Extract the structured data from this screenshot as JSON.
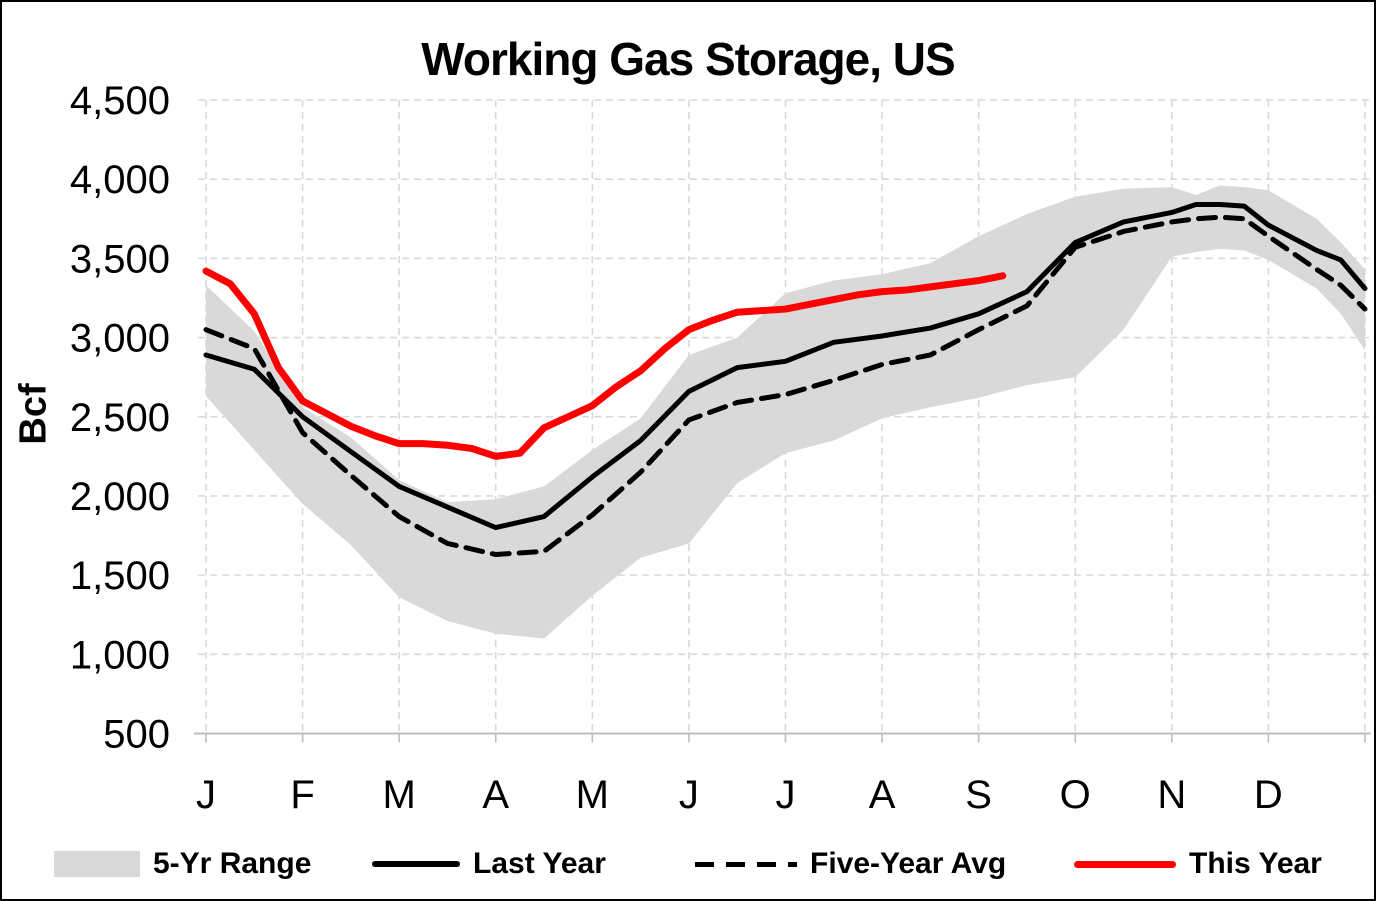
{
  "chart_data": {
    "type": "line",
    "title": "Working Gas Storage, US",
    "legend_position": "bottom",
    "y_axis": {
      "label": "Bcf",
      "range": [
        500,
        4500
      ],
      "tick_interval": 500,
      "ticks": [
        500,
        1000,
        1500,
        2000,
        2500,
        3000,
        3500,
        4000,
        4500
      ],
      "tick_labels": [
        "500",
        "1,000",
        "1,500",
        "2,000",
        "2,500",
        "3,000",
        "3,500",
        "4,000",
        "4,500"
      ],
      "gridlines": "dashed"
    },
    "x_axis": {
      "unit": "month_index_0_is_january",
      "range": [
        0,
        12
      ],
      "ticks": [
        0,
        1,
        2,
        3,
        4,
        5,
        6,
        7,
        8,
        9,
        10,
        11
      ],
      "tick_labels": [
        "J",
        "F",
        "M",
        "A",
        "M",
        "J",
        "J",
        "A",
        "S",
        "O",
        "N",
        "D"
      ],
      "gridlines": "dashed"
    },
    "colors": {
      "band": "#D9D9D9",
      "last_year": "#000000",
      "five_year_avg": "#000000",
      "this_year": "#FF0000",
      "gridline": "#D9D9D9",
      "axis_line": "#BFBFBF",
      "text": "#000000",
      "background": "#FFFFFF"
    },
    "series": {
      "five_year_range": {
        "label": "5-Yr Range",
        "type": "band",
        "color": "#D9D9D9",
        "x": [
          0,
          0.5,
          1,
          1.5,
          2,
          2.5,
          3,
          3.5,
          4,
          4.5,
          5,
          5.5,
          6,
          6.5,
          7,
          7.5,
          8,
          8.5,
          9,
          9.5,
          10,
          10.25,
          10.5,
          10.75,
          11,
          11.5,
          11.75,
          12
        ],
        "upper": [
          3330,
          3040,
          2560,
          2370,
          2100,
          1960,
          1980,
          2060,
          2290,
          2490,
          2890,
          3000,
          3280,
          3360,
          3400,
          3470,
          3640,
          3780,
          3890,
          3940,
          3950,
          3900,
          3960,
          3950,
          3930,
          3750,
          3600,
          3430
        ],
        "lower": [
          2630,
          2290,
          1950,
          1690,
          1360,
          1210,
          1130,
          1100,
          1370,
          1610,
          1700,
          2080,
          2270,
          2350,
          2490,
          2560,
          2620,
          2700,
          2750,
          3050,
          3510,
          3540,
          3560,
          3550,
          3490,
          3310,
          3150,
          2920
        ]
      },
      "last_year": {
        "label": "Last Year",
        "type": "line",
        "style": "solid",
        "color": "#000000",
        "stroke_width": 5,
        "x": [
          0,
          0.5,
          1,
          1.5,
          2,
          2.5,
          3,
          3.5,
          4,
          4.5,
          5,
          5.5,
          6,
          6.5,
          7,
          7.5,
          8,
          8.5,
          9,
          9.5,
          10,
          10.25,
          10.5,
          10.75,
          11,
          11.5,
          11.75,
          12
        ],
        "values": [
          2890,
          2800,
          2500,
          2280,
          2060,
          1930,
          1800,
          1870,
          2120,
          2350,
          2660,
          2810,
          2850,
          2970,
          3010,
          3060,
          3150,
          3290,
          3600,
          3730,
          3790,
          3840,
          3840,
          3830,
          3710,
          3550,
          3490,
          3310
        ]
      },
      "five_year_avg": {
        "label": "Five-Year Avg",
        "type": "line",
        "style": "dashed",
        "color": "#000000",
        "stroke_width": 5,
        "x": [
          0,
          0.5,
          1,
          1.5,
          2,
          2.5,
          3,
          3.5,
          4,
          4.5,
          5,
          5.5,
          6,
          6.5,
          7,
          7.5,
          8,
          8.5,
          9,
          9.5,
          10,
          10.25,
          10.5,
          10.75,
          11,
          11.5,
          11.75,
          12
        ],
        "values": [
          3050,
          2930,
          2400,
          2130,
          1870,
          1700,
          1630,
          1650,
          1880,
          2150,
          2480,
          2590,
          2640,
          2730,
          2830,
          2890,
          3050,
          3200,
          3570,
          3670,
          3730,
          3750,
          3760,
          3750,
          3640,
          3430,
          3330,
          3180
        ]
      },
      "this_year": {
        "label": "This Year",
        "type": "line",
        "style": "solid",
        "color": "#FF0000",
        "stroke_width": 7,
        "x": [
          0,
          0.25,
          0.5,
          0.75,
          1,
          1.25,
          1.5,
          1.75,
          2,
          2.25,
          2.5,
          2.75,
          3,
          3.25,
          3.5,
          3.75,
          4,
          4.25,
          4.5,
          4.75,
          5,
          5.25,
          5.5,
          5.75,
          6,
          6.25,
          6.5,
          6.75,
          7,
          7.25,
          7.5,
          7.75,
          8,
          8.25
        ],
        "values": [
          3420,
          3340,
          3150,
          2810,
          2600,
          2520,
          2440,
          2380,
          2330,
          2330,
          2320,
          2300,
          2250,
          2270,
          2430,
          2500,
          2570,
          2690,
          2790,
          2930,
          3050,
          3110,
          3160,
          3170,
          3180,
          3210,
          3240,
          3270,
          3290,
          3300,
          3320,
          3340,
          3360,
          3390
        ]
      }
    }
  },
  "legend": {
    "items": [
      {
        "label": "5-Yr Range",
        "swatch": "band"
      },
      {
        "label": "Last Year",
        "swatch": "solid"
      },
      {
        "label": "Five-Year Avg",
        "swatch": "dashed"
      },
      {
        "label": "This Year",
        "swatch": "red"
      }
    ]
  }
}
